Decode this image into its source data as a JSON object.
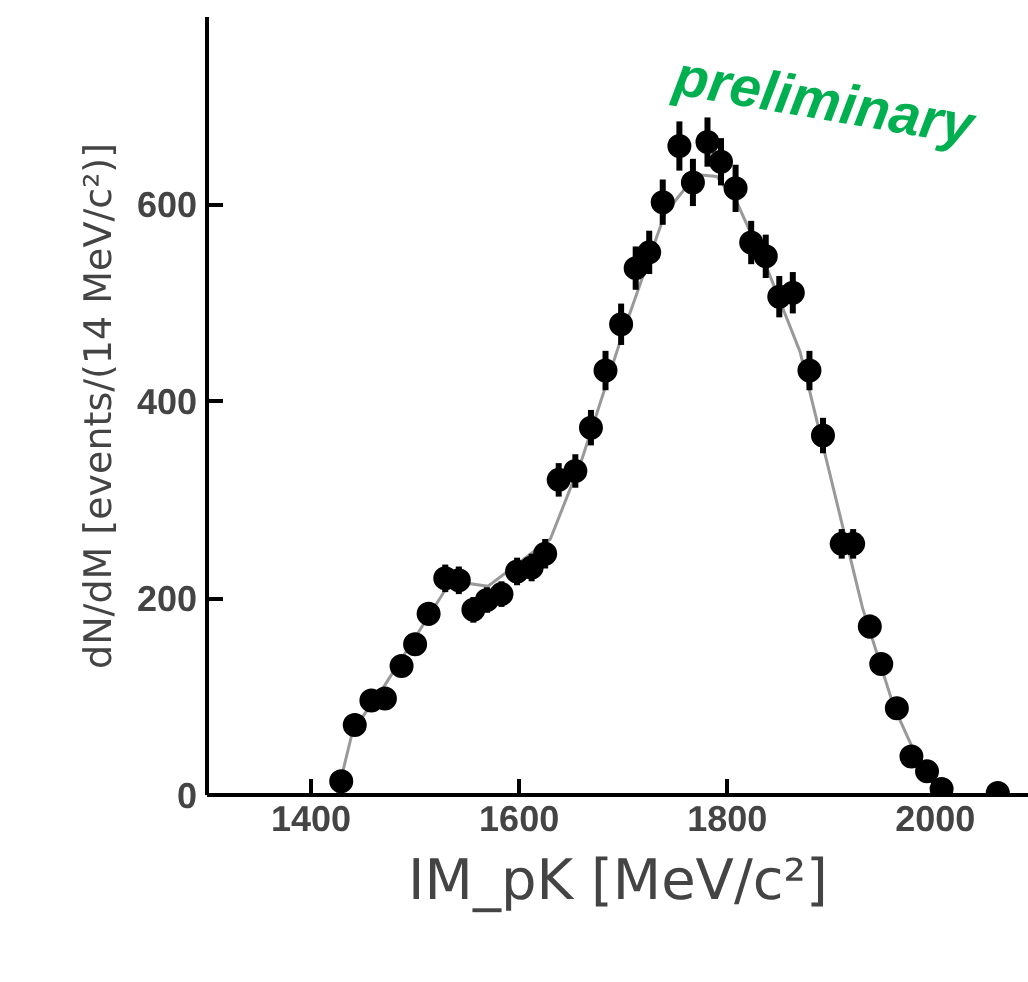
{
  "chart_data": {
    "type": "scatter",
    "xlabel": "IM_pK [MeV/c²]",
    "ylabel": "dN/dM [events/(14 MeV/c²)]",
    "xlim": [
      1300,
      2090
    ],
    "ylim": [
      0,
      790
    ],
    "xticks": [
      1400,
      1600,
      1800,
      2000
    ],
    "yticks": [
      0,
      200,
      400,
      600
    ],
    "grid": false,
    "annotations": [
      "preliminary"
    ],
    "series": [
      {
        "marker": "circle",
        "color": "#000000",
        "x": [
          1429,
          1442,
          1458,
          1471,
          1487,
          1500,
          1513,
          1529,
          1542,
          1556,
          1569,
          1583,
          1598,
          1612,
          1625,
          1638,
          1654,
          1669,
          1683,
          1698,
          1712,
          1725,
          1738,
          1754,
          1767,
          1781,
          1794,
          1808,
          1823,
          1837,
          1850,
          1863,
          1879,
          1892,
          1910,
          1921,
          1937,
          1948,
          1963,
          1977,
          1992,
          2006,
          2060
        ],
        "values": [
          14,
          71,
          96,
          98,
          131,
          153,
          184,
          220,
          218,
          188,
          198,
          204,
          227,
          231,
          245,
          320,
          329,
          373,
          431,
          478,
          535,
          551,
          602,
          659,
          622,
          663,
          643,
          616,
          561,
          547,
          506,
          510,
          431,
          365,
          255,
          255,
          171,
          133,
          88,
          39,
          24,
          6,
          2
        ],
        "errors": [
          null,
          null,
          null,
          null,
          null,
          null,
          12,
          14,
          14,
          13,
          13,
          13,
          14,
          14,
          15,
          17,
          17,
          18,
          20,
          21,
          22,
          22,
          23,
          25,
          24,
          25,
          24,
          24,
          22,
          22,
          21,
          21,
          20,
          18,
          15,
          15,
          12,
          null,
          null,
          null,
          null,
          null,
          null
        ]
      },
      {
        "type": "line",
        "color": "#999999",
        "x": [
          1425,
          1440,
          1470,
          1500,
          1530,
          1550,
          1570,
          1630,
          1660,
          1700,
          1740,
          1770,
          1790,
          1810,
          1840,
          1870,
          1900,
          1930,
          1960,
          1990,
          2010
        ],
        "values": [
          0,
          65,
          110,
          160,
          210,
          215,
          212,
          260,
          340,
          470,
          590,
          630,
          628,
          600,
          530,
          450,
          320,
          190,
          90,
          20,
          0
        ]
      }
    ]
  }
}
